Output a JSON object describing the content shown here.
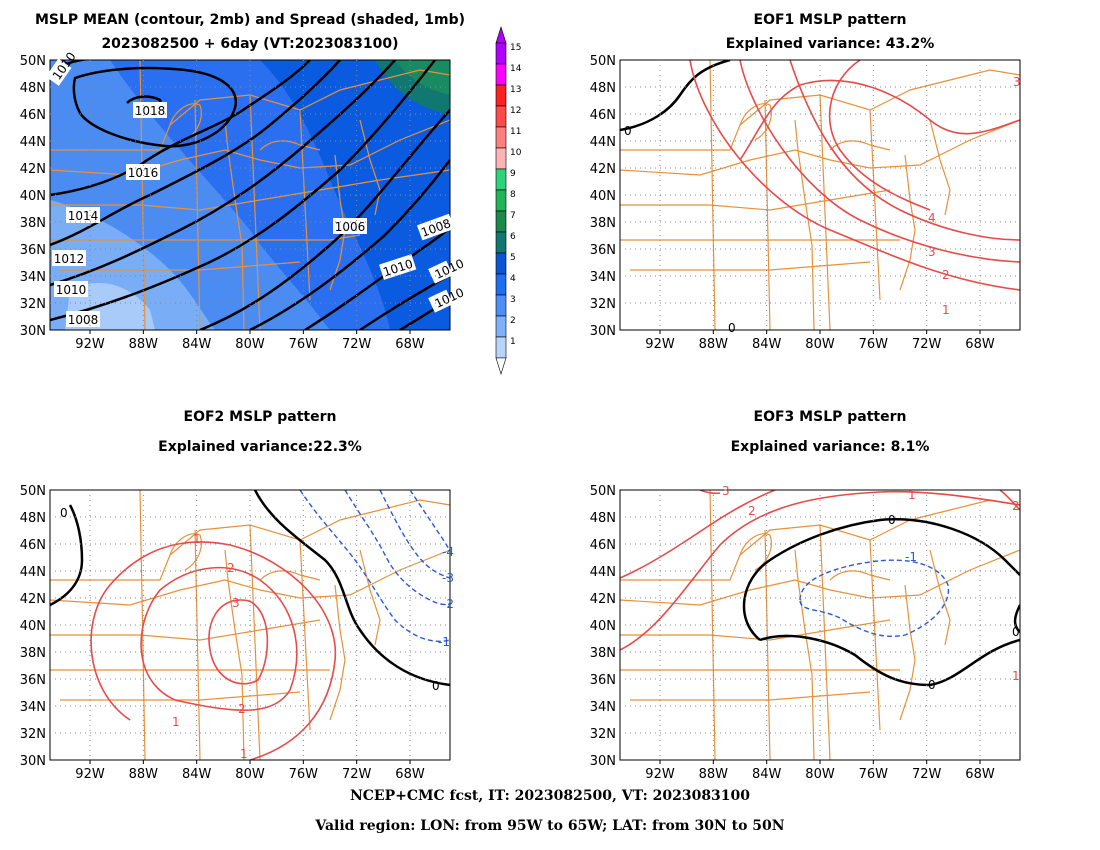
{
  "panels": [
    {
      "id": "mean",
      "title_lines": [
        "MSLP MEAN (contour, 2mb) and Spread (shaded, 1mb)",
        "2023082500 + 6day (VT:2023083100)"
      ],
      "contour_labels": [
        "1018",
        "1016",
        "1014",
        "1012",
        "1010",
        "1008",
        "1006",
        "1010",
        "1008",
        "1010",
        "1010",
        "1010"
      ]
    },
    {
      "id": "eof1",
      "title_lines": [
        "EOF1 MSLP pattern",
        "Explained variance: 43.2%"
      ],
      "contour_labels": [
        "0",
        "0",
        "1",
        "2",
        "3",
        "4",
        "3"
      ]
    },
    {
      "id": "eof2",
      "title_lines": [
        "EOF2 MSLP pattern",
        "Explained variance:22.3%"
      ],
      "contour_labels": [
        "0",
        "0",
        "1",
        "2",
        "3",
        "1",
        "2",
        "1",
        "-1",
        "-2",
        "-3",
        "-4"
      ]
    },
    {
      "id": "eof3",
      "title_lines": [
        "EOF3 MSLP pattern",
        "Explained variance: 8.1%"
      ],
      "contour_labels": [
        "0",
        "0",
        "0",
        "-1",
        "1",
        "2",
        "3",
        "2",
        "1"
      ]
    }
  ],
  "axes": {
    "lat_labels": [
      "50N",
      "48N",
      "46N",
      "44N",
      "42N",
      "40N",
      "38N",
      "36N",
      "34N",
      "32N",
      "30N"
    ],
    "lon_labels": [
      "92W",
      "88W",
      "84W",
      "80W",
      "76W",
      "72W",
      "68W"
    ]
  },
  "colorbar": {
    "labels": [
      "15",
      "14",
      "13",
      "12",
      "11",
      "10",
      "9",
      "8",
      "7",
      "6",
      "5",
      "4",
      "3",
      "2",
      "1"
    ],
    "colors": [
      "#b000ff",
      "#ff00ff",
      "#ff2020",
      "#ff4a4a",
      "#ff7f7f",
      "#ffb4b4",
      "#2bd37a",
      "#1fb35a",
      "#1a8a4a",
      "#107870",
      "#0a55d6",
      "#1e6ef0",
      "#4e8ff5",
      "#7fb1f8",
      "#b8d4fb"
    ]
  },
  "footer": {
    "line1": "NCEP+CMC fcst, IT: 2023082500, VT: 2023083100",
    "line2": "Valid region: LON: from 95W to 65W; LAT: from 30N to 50N"
  }
}
